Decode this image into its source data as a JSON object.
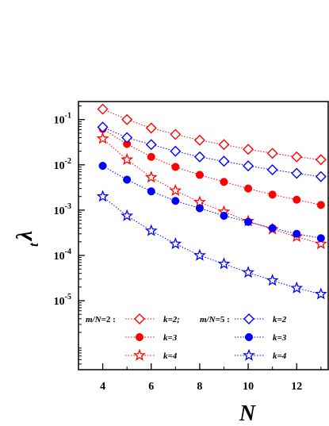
{
  "chart_data": {
    "type": "scatter",
    "title": "",
    "xlabel": "N",
    "ylabel": "λ",
    "ylabel_sub": "t",
    "xlim": [
      3,
      13.3
    ],
    "ylim": [
      3e-07,
      0.25
    ],
    "y_scale": "log",
    "x_ticks": [
      4,
      6,
      8,
      10,
      12
    ],
    "y_ticks": [
      {
        "value": 0.1,
        "base": "10",
        "exp": "-1"
      },
      {
        "value": 0.01,
        "base": "10",
        "exp": "-2"
      },
      {
        "value": 0.001,
        "base": "10",
        "exp": "-3"
      },
      {
        "value": 0.0001,
        "base": "10",
        "exp": "-4"
      },
      {
        "value": 1e-05,
        "base": "10",
        "exp": "-5"
      }
    ],
    "grid": false,
    "legend_position": "bottom-left",
    "legend_groups": [
      {
        "label_prefix": "m/N",
        "label_suffix": "=2 :",
        "color": "#ff0000"
      },
      {
        "label_prefix": "m/N",
        "label_suffix": "=5 :",
        "color": "#0000ff"
      }
    ],
    "series": [
      {
        "group": 0,
        "label": "k=2;",
        "marker": "diamond-open",
        "color": "#ff0000",
        "x": [
          4,
          5,
          6,
          7,
          8,
          9,
          10,
          11,
          12,
          13
        ],
        "y": [
          0.17,
          0.1,
          0.065,
          0.047,
          0.035,
          0.028,
          0.022,
          0.018,
          0.015,
          0.013
        ]
      },
      {
        "group": 0,
        "label": "k=3",
        "marker": "circle-filled",
        "color": "#ff0000",
        "x": [
          4,
          5,
          6,
          7,
          8,
          9,
          10,
          11,
          12,
          13
        ],
        "y": [
          0.062,
          0.029,
          0.015,
          0.009,
          0.006,
          0.0042,
          0.003,
          0.0022,
          0.0017,
          0.0013
        ]
      },
      {
        "group": 0,
        "label": "k=4",
        "marker": "star-open",
        "color": "#ff0000",
        "x": [
          4,
          5,
          6,
          7,
          8,
          9,
          10,
          11,
          12,
          13
        ],
        "y": [
          0.038,
          0.013,
          0.0053,
          0.0027,
          0.0015,
          0.00092,
          0.00057,
          0.00038,
          0.00026,
          0.00018
        ]
      },
      {
        "group": 1,
        "label": "k=2",
        "marker": "diamond-open",
        "color": "#0000ff",
        "x": [
          4,
          5,
          6,
          7,
          8,
          9,
          10,
          11,
          12,
          13
        ],
        "y": [
          0.068,
          0.04,
          0.028,
          0.02,
          0.015,
          0.012,
          0.0095,
          0.0078,
          0.0065,
          0.0055
        ]
      },
      {
        "group": 1,
        "label": "k=3",
        "marker": "circle-filled",
        "color": "#0000ff",
        "x": [
          4,
          5,
          6,
          7,
          8,
          9,
          10,
          11,
          12,
          13
        ],
        "y": [
          0.0095,
          0.0047,
          0.0026,
          0.0016,
          0.0011,
          0.00075,
          0.00055,
          0.0004,
          0.0003,
          0.00024
        ]
      },
      {
        "group": 1,
        "label": "k=4",
        "marker": "star-open",
        "color": "#0000ff",
        "x": [
          4,
          5,
          6,
          7,
          8,
          9,
          10,
          11,
          12,
          13
        ],
        "y": [
          0.002,
          0.00075,
          0.00035,
          0.00018,
          0.0001,
          6.5e-05,
          4.2e-05,
          2.8e-05,
          1.9e-05,
          1.4e-05
        ]
      }
    ]
  }
}
